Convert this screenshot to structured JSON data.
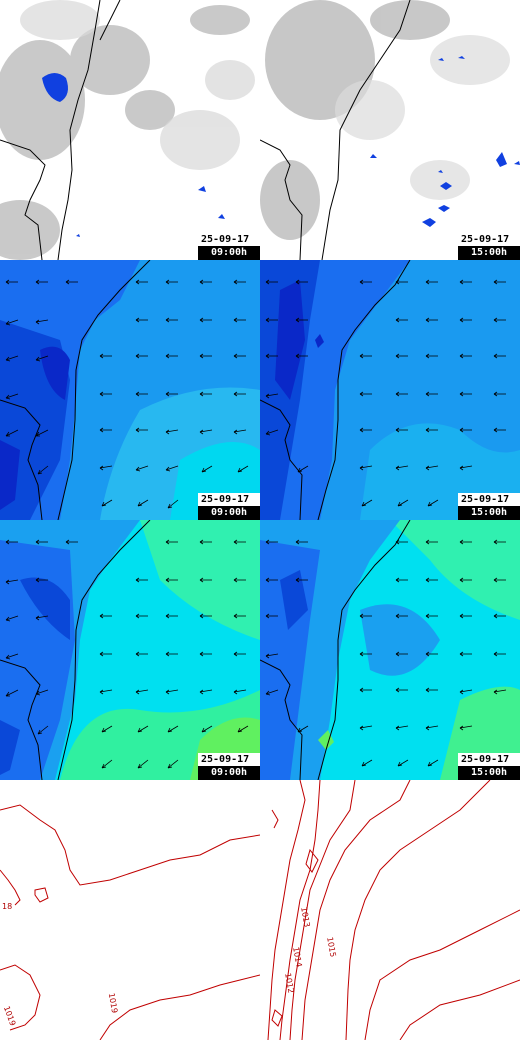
{
  "panels": [
    {
      "date": "25-09-17",
      "time": "09:00h"
    },
    {
      "date": "25-09-17",
      "time": "15:00h"
    },
    {
      "date": "25-09-17",
      "time": "09:00h"
    },
    {
      "date": "25-09-17",
      "time": "15:00h"
    },
    {
      "date": "25-09-17",
      "time": "09:00h"
    },
    {
      "date": "25-09-17",
      "time": "15:00h"
    }
  ],
  "pressure": {
    "left_labels": [
      "18",
      "1019",
      "1019"
    ],
    "right_labels": [
      "1015",
      "1014",
      "1013",
      "1012"
    ]
  },
  "colors": {
    "cloud_grey": "#a8a8a8",
    "precip_blue": "#1040e0",
    "wind_dark": "#0a28c8",
    "wind_mid": "#1a6ef0",
    "wind_light": "#00c8f0",
    "wind_cyan": "#00e8f0",
    "wind_green": "#20f0a0",
    "isobar_red": "#c00000",
    "coastline": "#000000"
  }
}
